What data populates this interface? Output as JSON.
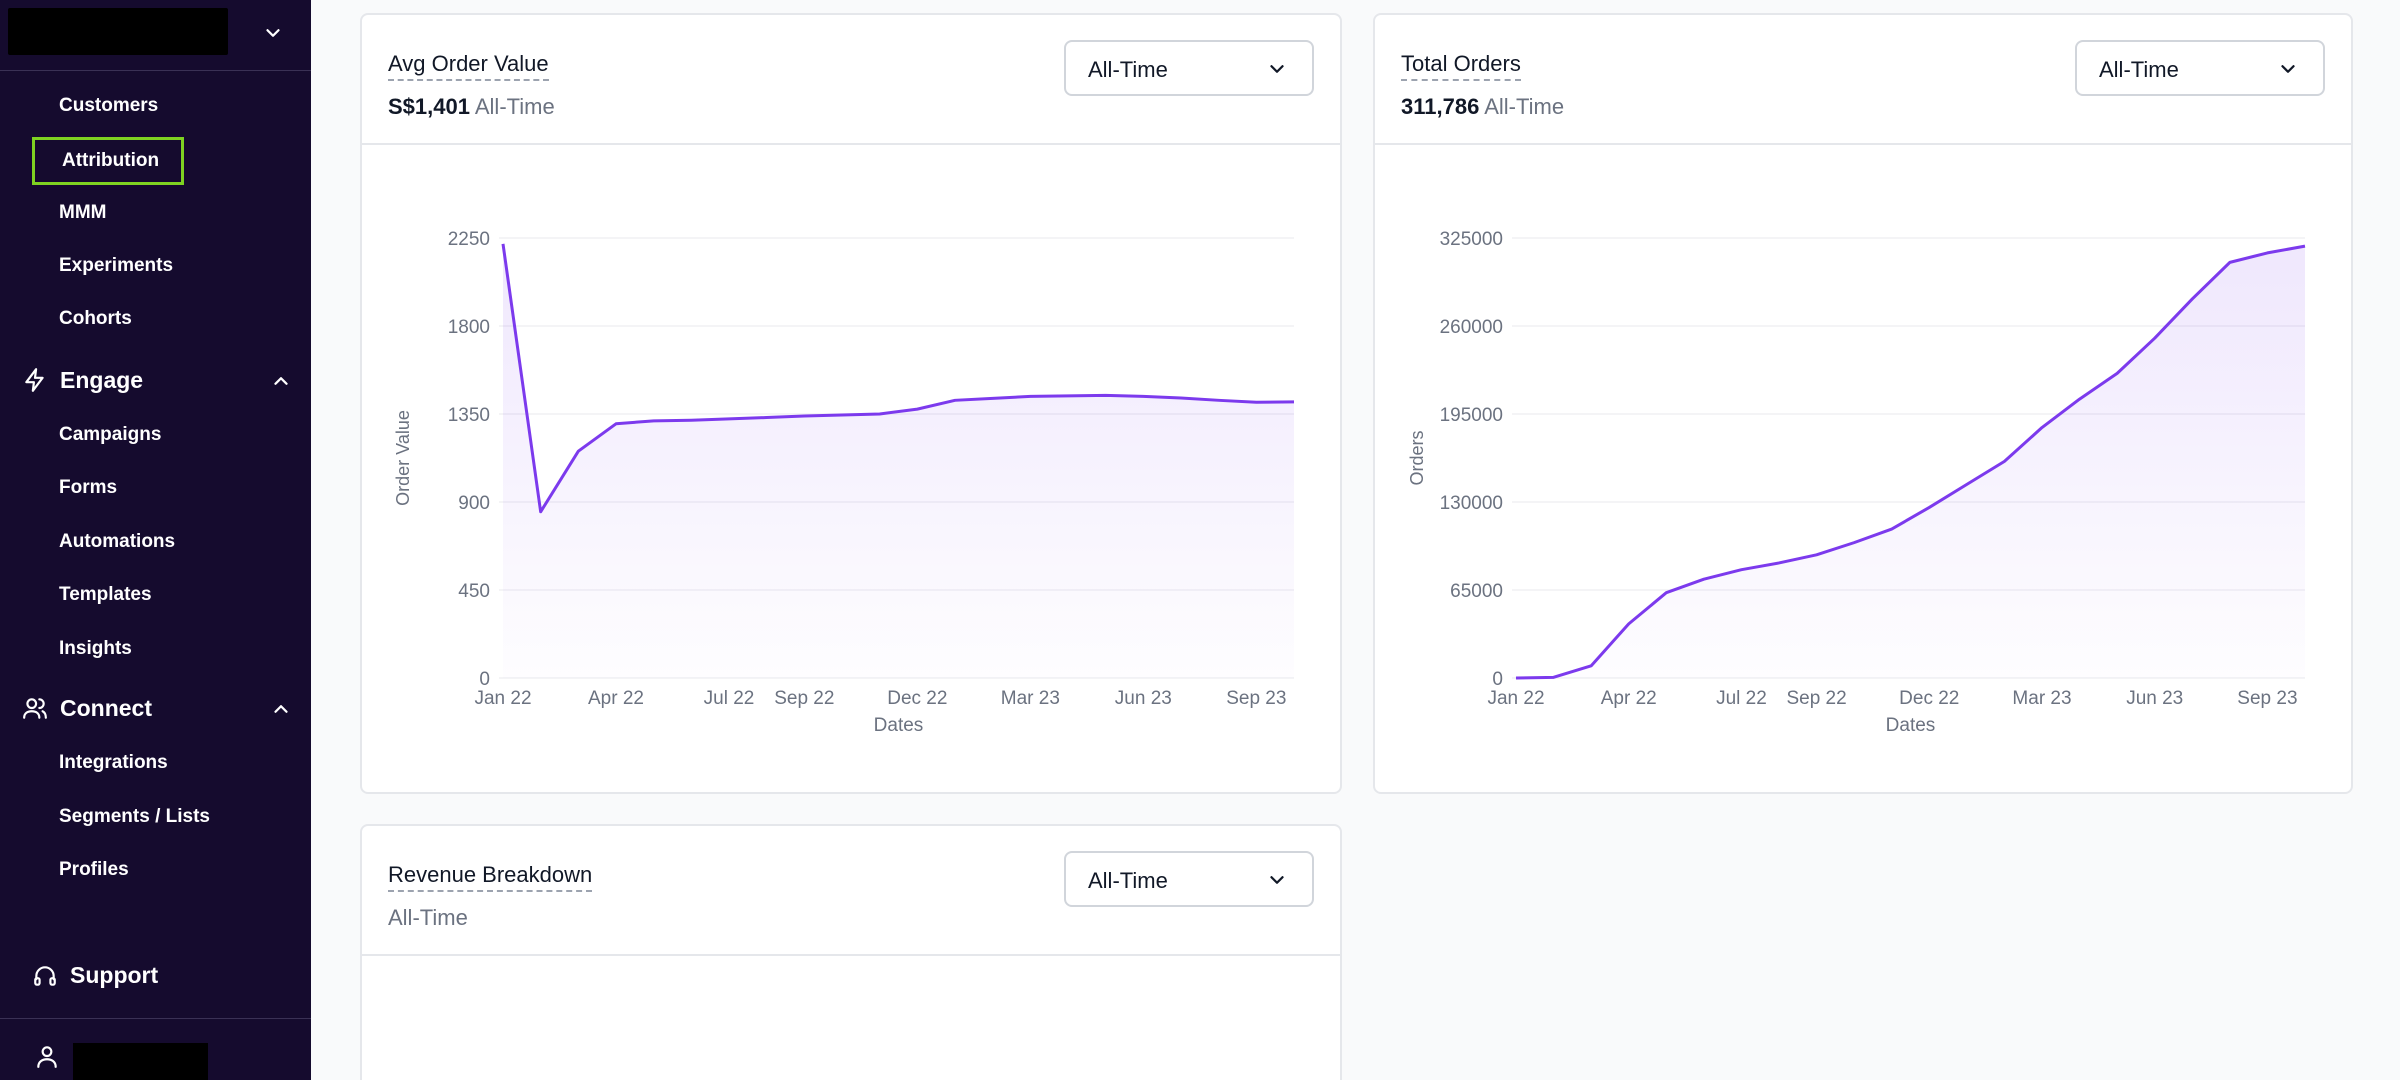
{
  "sidebar": {
    "items_top": [
      {
        "label": "Customers"
      },
      {
        "label": "Attribution"
      },
      {
        "label": "MMM"
      },
      {
        "label": "Experiments"
      },
      {
        "label": "Cohorts"
      }
    ],
    "engage": {
      "label": "Engage",
      "items": [
        {
          "label": "Campaigns"
        },
        {
          "label": "Forms"
        },
        {
          "label": "Automations"
        },
        {
          "label": "Templates"
        },
        {
          "label": "Insights"
        }
      ]
    },
    "connect": {
      "label": "Connect",
      "items": [
        {
          "label": "Integrations"
        },
        {
          "label": "Segments / Lists"
        },
        {
          "label": "Profiles"
        }
      ]
    },
    "support_label": "Support",
    "active_item": "Attribution",
    "active_outline_color": "#7ed321"
  },
  "cards": {
    "aov": {
      "title": "Avg Order Value",
      "value": "S$1,401",
      "period": "All-Time",
      "dropdown": "All-Time"
    },
    "orders": {
      "title": "Total Orders",
      "value": "311,786",
      "period": "All-Time",
      "dropdown": "All-Time"
    },
    "revenue": {
      "title": "Revenue Breakdown",
      "period": "All-Time",
      "dropdown": "All-Time"
    }
  },
  "colors": {
    "line": "#7c3aed",
    "sidebar_bg": "#150b2e"
  },
  "chart_data": [
    {
      "type": "area",
      "xlabel": "Dates",
      "ylabel": "Order Value",
      "ylim": [
        0,
        2250
      ],
      "yticks": [
        0,
        450,
        900,
        1350,
        1800,
        2250
      ],
      "xticks": [
        "Jan 22",
        "Apr 22",
        "Jul 22",
        "Sep 22",
        "Dec 22",
        "Mar 23",
        "Jun 23",
        "Sep 23"
      ],
      "x": [
        "Jan 22",
        "Feb 22",
        "Mar 22",
        "Apr 22",
        "May 22",
        "Jun 22",
        "Jul 22",
        "Aug 22",
        "Sep 22",
        "Oct 22",
        "Nov 22",
        "Dec 22",
        "Jan 23",
        "Feb 23",
        "Mar 23",
        "Apr 23",
        "May 23",
        "Jun 23",
        "Jul 23",
        "Aug 23",
        "Sep 23",
        "Oct 23"
      ],
      "values": [
        2220,
        850,
        1160,
        1300,
        1315,
        1318,
        1325,
        1332,
        1340,
        1345,
        1350,
        1375,
        1420,
        1430,
        1440,
        1443,
        1445,
        1440,
        1432,
        1420,
        1410,
        1412
      ],
      "grid": true
    },
    {
      "type": "area",
      "xlabel": "Dates",
      "ylabel": "Orders",
      "ylim": [
        0,
        325000
      ],
      "yticks": [
        0,
        65000,
        130000,
        195000,
        260000,
        325000
      ],
      "xticks": [
        "Jan 22",
        "Apr 22",
        "Jul 22",
        "Sep 22",
        "Dec 22",
        "Mar 23",
        "Jun 23",
        "Sep 23"
      ],
      "x": [
        "Jan 22",
        "Feb 22",
        "Mar 22",
        "Apr 22",
        "May 22",
        "Jun 22",
        "Jul 22",
        "Aug 22",
        "Sep 22",
        "Oct 22",
        "Nov 22",
        "Dec 22",
        "Jan 23",
        "Feb 23",
        "Mar 23",
        "Apr 23",
        "May 23",
        "Jun 23",
        "Jul 23",
        "Aug 23",
        "Sep 23",
        "Oct 23"
      ],
      "values": [
        0,
        500,
        9000,
        40000,
        63000,
        73000,
        80000,
        85000,
        91000,
        100000,
        110000,
        126000,
        143000,
        160000,
        185000,
        206000,
        225000,
        251000,
        280000,
        307000,
        314000,
        319000
      ],
      "grid": true
    }
  ]
}
